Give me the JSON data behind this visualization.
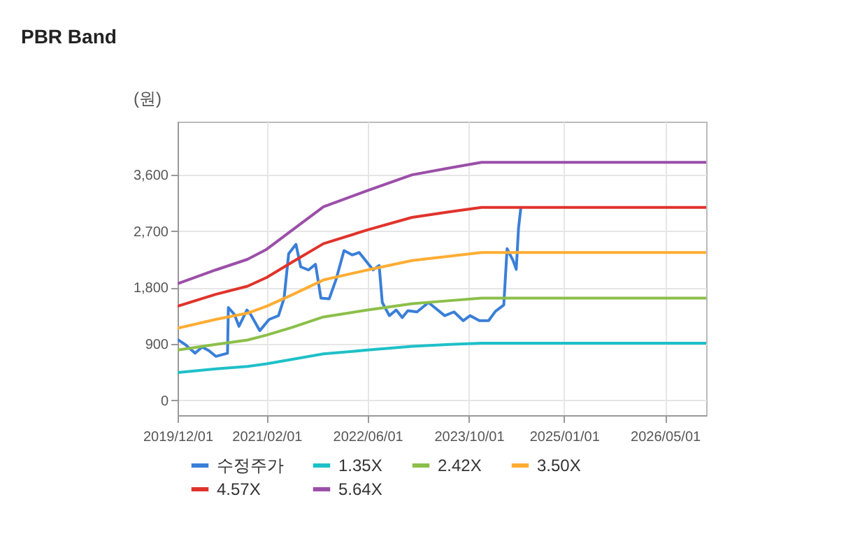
{
  "chart_data": {
    "type": "line",
    "title": "PBR Band",
    "ylabel": "(원)",
    "xlim": [
      "2019-12-01",
      "2026-11-15"
    ],
    "xticks": [
      {
        "value": "2019-12-01",
        "label": "2019/12/01"
      },
      {
        "value": "2021-02-01",
        "label": "2021/02/01"
      },
      {
        "value": "2022-06-01",
        "label": "2022/06/01"
      },
      {
        "value": "2023-10-01",
        "label": "2023/10/01"
      },
      {
        "value": "2025-01-01",
        "label": "2025/01/01"
      },
      {
        "value": "2026-05-01",
        "label": "2026/05/01"
      }
    ],
    "ylim": [
      -240,
      4450
    ],
    "yticks": [
      0,
      900,
      {
        "value": 1800,
        "label": "1,800"
      },
      {
        "value": 2700,
        "label": "2,700"
      },
      {
        "value": 3600,
        "label": "3,600"
      }
    ],
    "grid": true,
    "legend": "bottom",
    "marker": "none",
    "line_style": "solid",
    "series": [
      {
        "name": "수정주가",
        "color": "#3a7fd8",
        "x": [
          "2019-12-01",
          "2020-01-10",
          "2020-02-23",
          "2020-03-28",
          "2020-04-30",
          "2020-06-02",
          "2020-07-28",
          "2020-08-01",
          "2020-08-30",
          "2020-09-21",
          "2020-10-29",
          "2020-11-16",
          "2020-12-30",
          "2021-02-13",
          "2021-03-30",
          "2021-04-26",
          "2021-05-18",
          "2021-06-22",
          "2021-07-15",
          "2021-08-21",
          "2021-09-24",
          "2021-10-20",
          "2021-11-29",
          "2022-01-01",
          "2022-02-08",
          "2022-03-20",
          "2022-04-22",
          "2022-06-28",
          "2022-07-27",
          "2022-08-11",
          "2022-09-14",
          "2022-10-17",
          "2022-11-15",
          "2022-12-12",
          "2023-01-25",
          "2023-03-21",
          "2023-06-07",
          "2023-07-22",
          "2023-09-04",
          "2023-10-07",
          "2023-11-21",
          "2024-01-04",
          "2024-02-06",
          "2024-03-17",
          "2024-04-02",
          "2024-05-01",
          "2024-05-16",
          "2024-05-27",
          "2024-06-07"
        ],
        "values": [
          970,
          880,
          750,
          850,
          790,
          700,
          750,
          1480,
          1370,
          1180,
          1440,
          1370,
          1110,
          1290,
          1350,
          1630,
          2340,
          2490,
          2130,
          2080,
          2170,
          1630,
          1620,
          1930,
          2390,
          2320,
          2360,
          2080,
          2150,
          1560,
          1350,
          1440,
          1320,
          1430,
          1410,
          1560,
          1350,
          1410,
          1270,
          1350,
          1270,
          1270,
          1420,
          1520,
          2420,
          2230,
          2090,
          2750,
          3070
        ]
      },
      {
        "name": "1.35X",
        "color": "#1ec0c8",
        "x": [
          "2019-12-01",
          "2020-06-01",
          "2020-11-01",
          "2021-02-01",
          "2021-06-01",
          "2021-11-01",
          "2022-06-01",
          "2023-01-01",
          "2023-07-01",
          "2023-12-01",
          "2026-11-15"
        ],
        "values": [
          440,
          500,
          540,
          580,
          650,
          740,
          800,
          860,
          890,
          910,
          910
        ]
      },
      {
        "name": "2.42X",
        "color": "#8cbf4a",
        "x": [
          "2019-12-01",
          "2020-06-01",
          "2020-11-01",
          "2021-02-01",
          "2021-06-01",
          "2021-11-01",
          "2022-06-01",
          "2023-01-01",
          "2023-07-01",
          "2023-12-01",
          "2026-11-15"
        ],
        "values": [
          800,
          890,
          960,
          1040,
          1160,
          1330,
          1440,
          1540,
          1590,
          1630,
          1630
        ]
      },
      {
        "name": "3.50X",
        "color": "#ffad33",
        "x": [
          "2019-12-01",
          "2020-06-01",
          "2020-11-01",
          "2021-02-01",
          "2021-06-01",
          "2021-11-01",
          "2022-06-01",
          "2023-01-01",
          "2023-07-01",
          "2023-12-01",
          "2026-11-15"
        ],
        "values": [
          1150,
          1290,
          1390,
          1500,
          1680,
          1920,
          2080,
          2230,
          2300,
          2360,
          2360
        ]
      },
      {
        "name": "4.57X",
        "color": "#e0332b",
        "x": [
          "2019-12-01",
          "2020-06-01",
          "2020-11-01",
          "2021-02-01",
          "2021-06-01",
          "2021-11-01",
          "2022-06-01",
          "2023-01-01",
          "2023-07-01",
          "2023-12-01",
          "2026-11-15"
        ],
        "values": [
          1500,
          1690,
          1820,
          1960,
          2200,
          2500,
          2720,
          2920,
          3010,
          3080,
          3080
        ]
      },
      {
        "name": "5.64X",
        "color": "#9b4fa8",
        "x": [
          "2019-12-01",
          "2020-06-01",
          "2020-11-01",
          "2021-02-01",
          "2021-06-01",
          "2021-11-01",
          "2022-06-01",
          "2023-01-01",
          "2023-07-01",
          "2023-12-01",
          "2026-11-15"
        ],
        "values": [
          1860,
          2080,
          2250,
          2410,
          2710,
          3090,
          3350,
          3600,
          3710,
          3800,
          3800
        ]
      }
    ]
  }
}
